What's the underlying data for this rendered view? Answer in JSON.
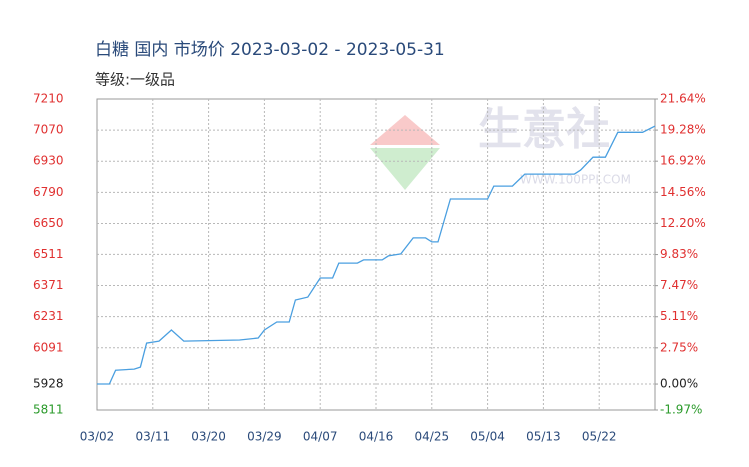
{
  "chart_data": {
    "type": "line",
    "title": "白糖 国内 市场价 2023-03-02 - 2023-05-31",
    "subtitle": "等级:一级品",
    "watermark": {
      "text": "生意社",
      "url": "WWW.100PPI.COM"
    },
    "x": [
      "03/02",
      "03/04",
      "03/05",
      "03/08",
      "03/09",
      "03/10",
      "03/12",
      "03/14",
      "03/16",
      "03/25",
      "03/28",
      "03/29",
      "03/31",
      "04/02",
      "04/03",
      "04/05",
      "04/07",
      "04/09",
      "04/10",
      "04/13",
      "04/14",
      "04/17",
      "04/18",
      "04/20",
      "04/22",
      "04/24",
      "04/25",
      "04/26",
      "04/28",
      "05/04",
      "05/05",
      "05/08",
      "05/10",
      "05/18",
      "05/19",
      "05/21",
      "05/23",
      "05/25",
      "05/29",
      "05/31"
    ],
    "values": [
      5928,
      5928,
      5990,
      5995,
      6004,
      6112,
      6121,
      6171,
      6121,
      6126,
      6135,
      6171,
      6207,
      6207,
      6306,
      6319,
      6405,
      6405,
      6472,
      6472,
      6486,
      6486,
      6504,
      6513,
      6585,
      6585,
      6567,
      6567,
      6760,
      6760,
      6818,
      6818,
      6872,
      6872,
      6890,
      6948,
      6948,
      7060,
      7060,
      7088
    ],
    "color": "#4a9fe0",
    "xlim": [
      "03/02",
      "05/31"
    ],
    "xticks": [
      "03/02",
      "03/11",
      "03/20",
      "03/29",
      "04/07",
      "04/16",
      "04/25",
      "05/04",
      "05/13",
      "05/22"
    ],
    "ylim": [
      5811,
      7210
    ],
    "yticks": [
      7210,
      7070,
      6930,
      6790,
      6650,
      6511,
      6371,
      6231,
      6091,
      5928,
      5811
    ],
    "y2lim": [
      -1.97,
      21.64
    ],
    "y2ticks": [
      {
        "value": 21.64,
        "label": "21.64%"
      },
      {
        "value": 19.28,
        "label": "19.28%"
      },
      {
        "value": 16.92,
        "label": "16.92%"
      },
      {
        "value": 14.56,
        "label": "14.56%"
      },
      {
        "value": 12.2,
        "label": "12.20%"
      },
      {
        "value": 9.83,
        "label": "9.83%"
      },
      {
        "value": 7.47,
        "label": "7.47%"
      },
      {
        "value": 5.11,
        "label": "5.11%"
      },
      {
        "value": 2.75,
        "label": "2.75%"
      },
      {
        "value": 0,
        "label": "0.00%"
      },
      {
        "value": -1.97,
        "label": "-1.97%"
      }
    ],
    "grid": true
  }
}
